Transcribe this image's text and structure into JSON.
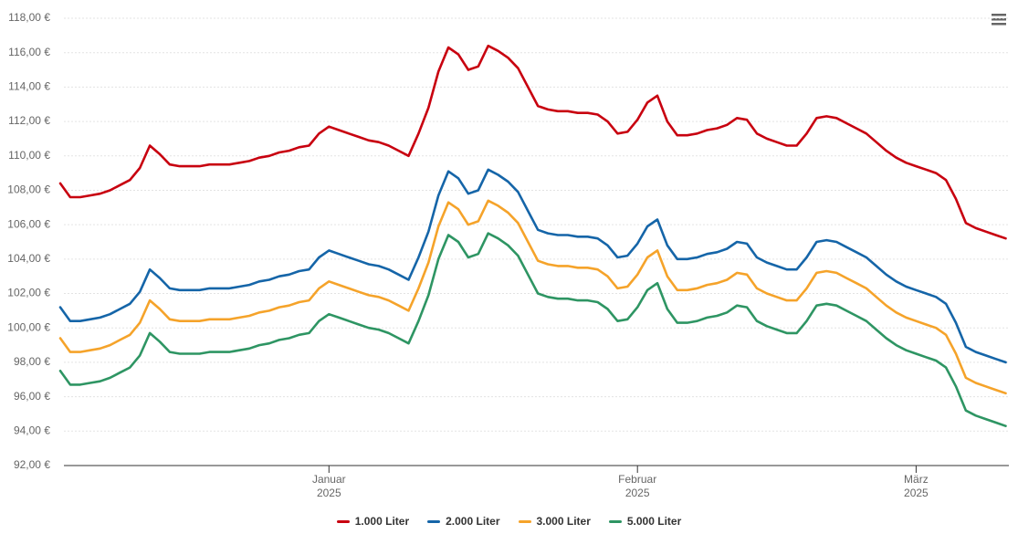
{
  "chart_data": {
    "type": "line",
    "categories": [
      null,
      null,
      null,
      null,
      null,
      null,
      null,
      null,
      null,
      null,
      null,
      null,
      null,
      null,
      null,
      null,
      null,
      null,
      null,
      null,
      null,
      null,
      null,
      null,
      null,
      null,
      null,
      "Januar\n2025",
      null,
      null,
      null,
      null,
      null,
      null,
      null,
      null,
      null,
      null,
      null,
      null,
      null,
      null,
      null,
      null,
      null,
      null,
      null,
      null,
      null,
      null,
      null,
      null,
      null,
      null,
      null,
      null,
      null,
      null,
      "Februar\n2025",
      null,
      null,
      null,
      null,
      null,
      null,
      null,
      null,
      null,
      null,
      null,
      null,
      null,
      null,
      null,
      null,
      null,
      null,
      null,
      null,
      null,
      null,
      null,
      null,
      null,
      null,
      null,
      "März\n2025",
      null,
      null,
      null,
      null,
      null,
      null,
      null,
      null,
      null
    ],
    "series": [
      {
        "name": "1.000 Liter",
        "color": "#c8000f",
        "values": [
          108.4,
          107.6,
          107.6,
          107.7,
          107.8,
          108.0,
          108.3,
          108.6,
          109.3,
          110.6,
          110.1,
          109.5,
          109.4,
          109.4,
          109.4,
          109.5,
          109.5,
          109.5,
          109.6,
          109.7,
          109.9,
          110.0,
          110.2,
          110.3,
          110.5,
          110.6,
          111.3,
          111.7,
          111.5,
          111.3,
          111.1,
          110.9,
          110.8,
          110.6,
          110.3,
          110.0,
          111.3,
          112.8,
          114.9,
          116.3,
          115.9,
          115.0,
          115.2,
          116.4,
          116.1,
          115.7,
          115.1,
          114.0,
          112.9,
          112.7,
          112.6,
          112.6,
          112.5,
          112.5,
          112.4,
          112.0,
          111.3,
          111.4,
          112.1,
          113.1,
          113.5,
          112.0,
          111.2,
          111.2,
          111.3,
          111.5,
          111.6,
          111.8,
          112.2,
          112.1,
          111.3,
          111.0,
          110.8,
          110.6,
          110.6,
          111.3,
          112.2,
          112.3,
          112.2,
          111.9,
          111.6,
          111.3,
          110.8,
          110.3,
          109.9,
          109.6,
          109.4,
          109.2,
          109.0,
          108.6,
          107.5,
          106.1,
          105.8,
          105.6,
          105.4,
          105.2
        ]
      },
      {
        "name": "2.000 Liter",
        "color": "#1565a8",
        "values": [
          101.2,
          100.4,
          100.4,
          100.5,
          100.6,
          100.8,
          101.1,
          101.4,
          102.1,
          103.4,
          102.9,
          102.3,
          102.2,
          102.2,
          102.2,
          102.3,
          102.3,
          102.3,
          102.4,
          102.5,
          102.7,
          102.8,
          103.0,
          103.1,
          103.3,
          103.4,
          104.1,
          104.5,
          104.3,
          104.1,
          103.9,
          103.7,
          103.6,
          103.4,
          103.1,
          102.8,
          104.1,
          105.6,
          107.7,
          109.1,
          108.7,
          107.8,
          108.0,
          109.2,
          108.9,
          108.5,
          107.9,
          106.8,
          105.7,
          105.5,
          105.4,
          105.4,
          105.3,
          105.3,
          105.2,
          104.8,
          104.1,
          104.2,
          104.9,
          105.9,
          106.3,
          104.8,
          104.0,
          104.0,
          104.1,
          104.3,
          104.4,
          104.6,
          105.0,
          104.9,
          104.1,
          103.8,
          103.6,
          103.4,
          103.4,
          104.1,
          105.0,
          105.1,
          105.0,
          104.7,
          104.4,
          104.1,
          103.6,
          103.1,
          102.7,
          102.4,
          102.2,
          102.0,
          101.8,
          101.4,
          100.3,
          98.9,
          98.6,
          98.4,
          98.2,
          98.0
        ]
      },
      {
        "name": "3.000 Liter",
        "color": "#f5a32a",
        "values": [
          99.4,
          98.6,
          98.6,
          98.7,
          98.8,
          99.0,
          99.3,
          99.6,
          100.3,
          101.6,
          101.1,
          100.5,
          100.4,
          100.4,
          100.4,
          100.5,
          100.5,
          100.5,
          100.6,
          100.7,
          100.9,
          101.0,
          101.2,
          101.3,
          101.5,
          101.6,
          102.3,
          102.7,
          102.5,
          102.3,
          102.1,
          101.9,
          101.8,
          101.6,
          101.3,
          101.0,
          102.3,
          103.8,
          105.9,
          107.3,
          106.9,
          106.0,
          106.2,
          107.4,
          107.1,
          106.7,
          106.1,
          105.0,
          103.9,
          103.7,
          103.6,
          103.6,
          103.5,
          103.5,
          103.4,
          103.0,
          102.3,
          102.4,
          103.1,
          104.1,
          104.5,
          103.0,
          102.2,
          102.2,
          102.3,
          102.5,
          102.6,
          102.8,
          103.2,
          103.1,
          102.3,
          102.0,
          101.8,
          101.6,
          101.6,
          102.3,
          103.2,
          103.3,
          103.2,
          102.9,
          102.6,
          102.3,
          101.8,
          101.3,
          100.9,
          100.6,
          100.4,
          100.2,
          100.0,
          99.6,
          98.5,
          97.1,
          96.8,
          96.6,
          96.4,
          96.2
        ]
      },
      {
        "name": "5.000 Liter",
        "color": "#2e9563",
        "values": [
          97.5,
          96.7,
          96.7,
          96.8,
          96.9,
          97.1,
          97.4,
          97.7,
          98.4,
          99.7,
          99.2,
          98.6,
          98.5,
          98.5,
          98.5,
          98.6,
          98.6,
          98.6,
          98.7,
          98.8,
          99.0,
          99.1,
          99.3,
          99.4,
          99.6,
          99.7,
          100.4,
          100.8,
          100.6,
          100.4,
          100.2,
          100.0,
          99.9,
          99.7,
          99.4,
          99.1,
          100.4,
          101.9,
          104.0,
          105.4,
          105.0,
          104.1,
          104.3,
          105.5,
          105.2,
          104.8,
          104.2,
          103.1,
          102.0,
          101.8,
          101.7,
          101.7,
          101.6,
          101.6,
          101.5,
          101.1,
          100.4,
          100.5,
          101.2,
          102.2,
          102.6,
          101.1,
          100.3,
          100.3,
          100.4,
          100.6,
          100.7,
          100.9,
          101.3,
          101.2,
          100.4,
          100.1,
          99.9,
          99.7,
          99.7,
          100.4,
          101.3,
          101.4,
          101.3,
          101.0,
          100.7,
          100.4,
          99.9,
          99.4,
          99.0,
          98.7,
          98.5,
          98.3,
          98.1,
          97.7,
          96.6,
          95.2,
          94.9,
          94.7,
          94.5,
          94.3
        ]
      }
    ],
    "ylim": [
      92,
      118
    ],
    "yticks": [
      {
        "value": 92,
        "label": "92,00 €"
      },
      {
        "value": 94,
        "label": "94,00 €"
      },
      {
        "value": 96,
        "label": "96,00 €"
      },
      {
        "value": 98,
        "label": "98,00 €"
      },
      {
        "value": 100,
        "label": "100,00 €"
      },
      {
        "value": 102,
        "label": "102,00 €"
      },
      {
        "value": 104,
        "label": "104,00 €"
      },
      {
        "value": 106,
        "label": "106,00 €"
      },
      {
        "value": 108,
        "label": "108,00 €"
      },
      {
        "value": 110,
        "label": "110,00 €"
      },
      {
        "value": 112,
        "label": "112,00 €"
      },
      {
        "value": 114,
        "label": "114,00 €"
      },
      {
        "value": 116,
        "label": "116,00 €"
      },
      {
        "value": 118,
        "label": "118,00 €"
      }
    ],
    "grid": true,
    "legend": "bottom"
  }
}
